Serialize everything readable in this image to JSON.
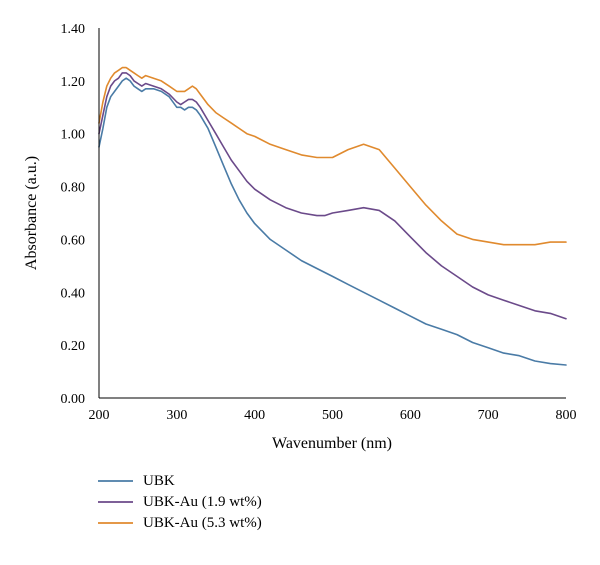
{
  "chart_data": {
    "type": "line",
    "title": "",
    "xlabel": "Wavenumber (nm)",
    "ylabel": "Absorbance (a.u.)",
    "xlim": [
      200,
      800
    ],
    "ylim": [
      0,
      1.4
    ],
    "x_ticks": [
      "200",
      "300",
      "400",
      "500",
      "600",
      "700",
      "800"
    ],
    "y_ticks": [
      "0.00",
      "0.20",
      "0.40",
      "0.60",
      "0.80",
      "1.00",
      "1.20",
      "1.40"
    ],
    "grid": false,
    "legend_position": "bottom-left",
    "series": [
      {
        "name": "UBK",
        "color": "#4a7ba6",
        "x": [
          200,
          205,
          210,
          215,
          220,
          225,
          230,
          235,
          240,
          245,
          250,
          255,
          260,
          270,
          280,
          290,
          300,
          305,
          310,
          315,
          320,
          325,
          330,
          340,
          350,
          360,
          370,
          380,
          390,
          400,
          420,
          440,
          460,
          480,
          500,
          520,
          540,
          560,
          580,
          600,
          620,
          640,
          660,
          680,
          700,
          720,
          740,
          760,
          780,
          800
        ],
        "y": [
          0.95,
          1.02,
          1.1,
          1.14,
          1.16,
          1.18,
          1.2,
          1.21,
          1.2,
          1.18,
          1.17,
          1.16,
          1.17,
          1.17,
          1.16,
          1.14,
          1.1,
          1.1,
          1.09,
          1.1,
          1.1,
          1.09,
          1.07,
          1.02,
          0.95,
          0.88,
          0.81,
          0.75,
          0.7,
          0.66,
          0.6,
          0.56,
          0.52,
          0.49,
          0.46,
          0.43,
          0.4,
          0.37,
          0.34,
          0.31,
          0.28,
          0.26,
          0.24,
          0.21,
          0.19,
          0.17,
          0.16,
          0.14,
          0.13,
          0.125
        ]
      },
      {
        "name": "UBK-Au (1.9 wt%)",
        "color": "#6b4a8a",
        "x": [
          200,
          205,
          210,
          215,
          220,
          225,
          230,
          235,
          240,
          245,
          250,
          255,
          260,
          270,
          280,
          290,
          300,
          305,
          310,
          315,
          320,
          325,
          330,
          340,
          350,
          360,
          370,
          380,
          390,
          400,
          420,
          440,
          460,
          480,
          490,
          500,
          520,
          540,
          560,
          580,
          600,
          620,
          640,
          660,
          680,
          700,
          720,
          740,
          760,
          780,
          800
        ],
        "y": [
          1.0,
          1.07,
          1.14,
          1.18,
          1.2,
          1.21,
          1.23,
          1.23,
          1.22,
          1.2,
          1.19,
          1.18,
          1.19,
          1.18,
          1.17,
          1.15,
          1.12,
          1.11,
          1.12,
          1.13,
          1.13,
          1.12,
          1.1,
          1.05,
          1.0,
          0.95,
          0.9,
          0.86,
          0.82,
          0.79,
          0.75,
          0.72,
          0.7,
          0.69,
          0.69,
          0.7,
          0.71,
          0.72,
          0.71,
          0.67,
          0.61,
          0.55,
          0.5,
          0.46,
          0.42,
          0.39,
          0.37,
          0.35,
          0.33,
          0.32,
          0.3
        ]
      },
      {
        "name": "UBK-Au (5.3 wt%)",
        "color": "#e08a2e",
        "x": [
          200,
          205,
          210,
          215,
          220,
          225,
          230,
          235,
          240,
          245,
          250,
          255,
          260,
          270,
          280,
          290,
          300,
          305,
          310,
          315,
          320,
          325,
          330,
          340,
          350,
          360,
          370,
          380,
          390,
          400,
          420,
          440,
          460,
          480,
          490,
          500,
          520,
          540,
          560,
          580,
          600,
          620,
          640,
          660,
          680,
          700,
          720,
          740,
          760,
          780,
          800
        ],
        "y": [
          1.04,
          1.12,
          1.18,
          1.21,
          1.23,
          1.24,
          1.25,
          1.25,
          1.24,
          1.23,
          1.22,
          1.21,
          1.22,
          1.21,
          1.2,
          1.18,
          1.16,
          1.16,
          1.16,
          1.17,
          1.18,
          1.17,
          1.15,
          1.11,
          1.08,
          1.06,
          1.04,
          1.02,
          1.0,
          0.99,
          0.96,
          0.94,
          0.92,
          0.91,
          0.91,
          0.91,
          0.94,
          0.96,
          0.94,
          0.87,
          0.8,
          0.73,
          0.67,
          0.62,
          0.6,
          0.59,
          0.58,
          0.58,
          0.58,
          0.59,
          0.59
        ]
      }
    ]
  }
}
